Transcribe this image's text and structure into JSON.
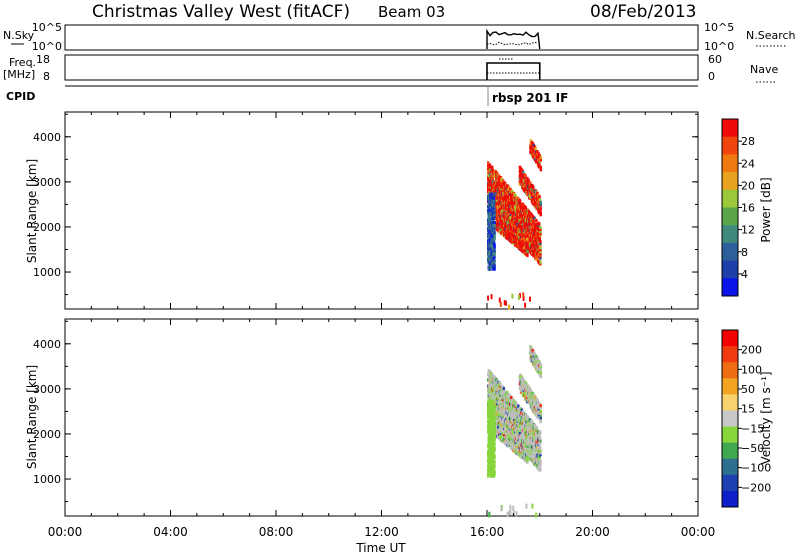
{
  "header": {
    "station": "Christmas Valley West (fitACF)",
    "beam": "Beam 03",
    "date": "08/Feb/2013"
  },
  "panels": {
    "nsky_label": "N.Sky",
    "nsky_ticks": [
      "10^5",
      "10^0"
    ],
    "nsearch_label": "N.Search",
    "freq_label": "Freq.",
    "freq_unit": "[MHz]",
    "freq_ticks": [
      "18",
      "8"
    ],
    "nave_label": "Nave",
    "nave_ticks": [
      "60",
      "0"
    ],
    "cpid_label": "CPID",
    "cpid_value": "rbsp 201 IF"
  },
  "colors": {
    "power_scale": [
      "#0a14e6",
      "#1f3fa8",
      "#2d5f9a",
      "#3f8a7d",
      "#5aa648",
      "#9bc83a",
      "#e7a21f",
      "#f07a12",
      "#f0450d",
      "#ee0a0a"
    ],
    "velocity_scale": [
      "#f00000",
      "#f03a10",
      "#ef6d12",
      "#f1a322",
      "#f6d36c",
      "#c8c8c8",
      "#86d63c",
      "#3fa851",
      "#2c6f8f",
      "#1e3fb0",
      "#0d1fc8"
    ],
    "grey_scatter": "#bdbdbd"
  },
  "chart_data": [
    {
      "type": "heatmap",
      "name": "power",
      "ylabel": "Slant Range [km]",
      "yticks": [
        "1000",
        "2000",
        "3000",
        "4000"
      ],
      "ylim": [
        180,
        4550
      ],
      "xlim": [
        0,
        24
      ],
      "colorbar_label": "Power [dB]",
      "colorbar_ticks": [
        "4",
        "8",
        "12",
        "16",
        "20",
        "24",
        "28"
      ],
      "colorbar_range": [
        0,
        32
      ],
      "data_window_ut": [
        16.0,
        18.0
      ]
    },
    {
      "type": "heatmap",
      "name": "velocity",
      "ylabel": "Slant Range [km]",
      "yticks": [
        "1000",
        "2000",
        "3000",
        "4000"
      ],
      "ylim": [
        180,
        4550
      ],
      "xlim": [
        0,
        24
      ],
      "colorbar_label": "Velocity [m s⁻¹]",
      "colorbar_ticks": [
        "200",
        "100",
        "50",
        "15",
        "−15",
        "−50",
        "−100",
        "−200"
      ],
      "data_window_ut": [
        16.0,
        18.0
      ]
    }
  ],
  "xaxis": {
    "label": "Time UT",
    "ticks": [
      "00:00",
      "04:00",
      "08:00",
      "12:00",
      "16:00",
      "20:00",
      "00:00"
    ]
  }
}
